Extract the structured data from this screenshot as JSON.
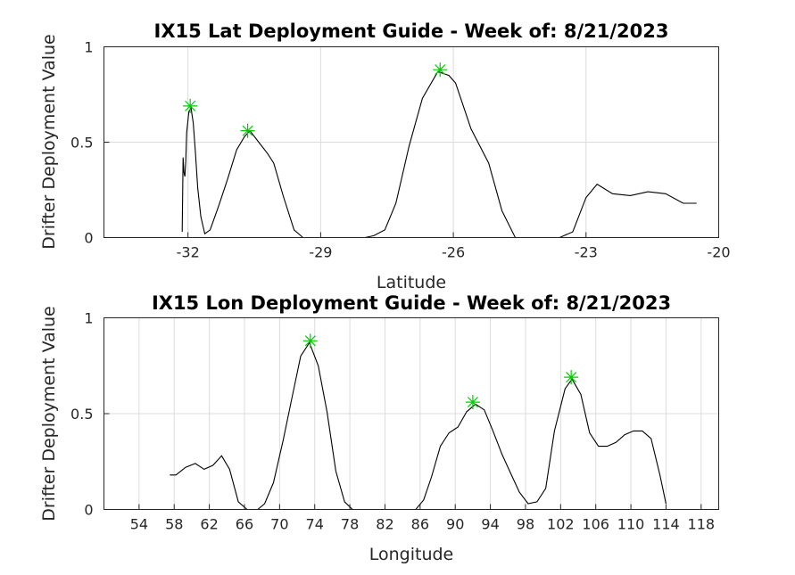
{
  "chart_data": [
    {
      "type": "line",
      "title": "IX15 Lat Deployment Guide - Week of: 8/21/2023",
      "xlabel": "Latitude",
      "ylabel": "Drifter Deployment Value",
      "xlim": [
        -33.9,
        -20
      ],
      "ylim": [
        0,
        1
      ],
      "xticks": [
        -32,
        -29,
        -26,
        -23,
        -20
      ],
      "xtick_labels": [
        "-32",
        "-29",
        "-26",
        "-23",
        "-20"
      ],
      "yticks": [
        0,
        0.5,
        1
      ],
      "ytick_labels": [
        "0",
        "0.5",
        "1"
      ],
      "grid": true,
      "series": [
        {
          "color": "#000000",
          "x": [
            -32.13,
            -32.11,
            -32.09,
            -32.07,
            -32.05,
            -32.03,
            -31.98,
            -31.93,
            -31.88,
            -31.83,
            -31.78,
            -31.71,
            -31.62,
            -31.5,
            -31.3,
            -31.1,
            -30.9,
            -30.72,
            -30.6,
            -30.4,
            -30.2,
            -30.06,
            -29.85,
            -29.6,
            -29.4,
            -29.2,
            -29.0,
            -28.8,
            -28.6,
            -28.3,
            -28.0,
            -27.8,
            -27.55,
            -27.3,
            -27.0,
            -26.7,
            -26.35,
            -26.1,
            -25.95,
            -25.6,
            -25.2,
            -24.9,
            -24.6,
            -24.3,
            -24.0,
            -23.6,
            -23.3,
            -23.0,
            -22.75,
            -22.4,
            -22.0,
            -21.6,
            -21.2,
            -20.8,
            -20.5
          ],
          "y": [
            0.03,
            0.42,
            0.34,
            0.32,
            0.4,
            0.55,
            0.66,
            0.68,
            0.6,
            0.44,
            0.26,
            0.11,
            0.02,
            0.04,
            0.17,
            0.31,
            0.46,
            0.53,
            0.56,
            0.5,
            0.44,
            0.39,
            0.22,
            0.04,
            0.0,
            0.0,
            0.0,
            0.0,
            0.0,
            0.0,
            0.0,
            0.01,
            0.04,
            0.18,
            0.48,
            0.73,
            0.87,
            0.85,
            0.81,
            0.57,
            0.39,
            0.14,
            0.0,
            0.0,
            0.0,
            0.0,
            0.03,
            0.21,
            0.28,
            0.23,
            0.22,
            0.24,
            0.23,
            0.18,
            0.18
          ]
        }
      ],
      "peaks": [
        {
          "x": -31.95,
          "y": 0.69
        },
        {
          "x": -30.65,
          "y": 0.56
        },
        {
          "x": -26.3,
          "y": 0.88
        }
      ],
      "peak_color": "#00cc00"
    },
    {
      "type": "line",
      "title": "IX15 Lon Deployment Guide - Week of: 8/21/2023",
      "xlabel": "Longitude",
      "ylabel": "Drifter Deployment Value",
      "xlim": [
        50,
        120
      ],
      "ylim": [
        0,
        1
      ],
      "xticks": [
        54,
        58,
        62,
        66,
        70,
        74,
        78,
        82,
        86,
        90,
        94,
        98,
        102,
        106,
        110,
        114,
        118
      ],
      "xtick_labels": [
        "54",
        "58",
        "62",
        "66",
        "70",
        "74",
        "78",
        "82",
        "86",
        "90",
        "94",
        "98",
        "102",
        "106",
        "110",
        "114",
        "118"
      ],
      "yticks": [
        0,
        0.5,
        1
      ],
      "ytick_labels": [
        "0",
        "0.5",
        "1"
      ],
      "grid": true,
      "series": [
        {
          "color": "#000000",
          "x": [
            57.5,
            58.2,
            59.3,
            60.4,
            61.4,
            62.4,
            63.4,
            64.3,
            65.3,
            66.3,
            67.5,
            68.3,
            69.3,
            70.4,
            71.4,
            72.4,
            73.4,
            74.4,
            75.4,
            76.4,
            77.4,
            78.3,
            79.3,
            80.5,
            82.0,
            84.0,
            85.5,
            86.4,
            87.3,
            88.3,
            89.3,
            90.3,
            91.3,
            92.3,
            93.3,
            94.3,
            95.3,
            96.3,
            97.3,
            98.3,
            99.3,
            100.3,
            101.3,
            102.5,
            103.3,
            104.3,
            105.3,
            106.3,
            107.3,
            108.3,
            109.3,
            110.3,
            111.3,
            112.3,
            113.3,
            114.0
          ],
          "y": [
            0.18,
            0.18,
            0.22,
            0.24,
            0.21,
            0.23,
            0.28,
            0.21,
            0.04,
            0.0,
            0.0,
            0.03,
            0.14,
            0.36,
            0.58,
            0.8,
            0.87,
            0.75,
            0.51,
            0.2,
            0.04,
            0.0,
            0.0,
            0.0,
            0.0,
            0.0,
            0.0,
            0.05,
            0.17,
            0.33,
            0.4,
            0.43,
            0.51,
            0.55,
            0.52,
            0.41,
            0.29,
            0.19,
            0.09,
            0.03,
            0.04,
            0.11,
            0.41,
            0.63,
            0.68,
            0.6,
            0.4,
            0.33,
            0.33,
            0.35,
            0.39,
            0.41,
            0.41,
            0.37,
            0.18,
            0.03
          ]
        }
      ],
      "peaks": [
        {
          "x": 73.5,
          "y": 0.88
        },
        {
          "x": 92.0,
          "y": 0.56
        },
        {
          "x": 103.2,
          "y": 0.69
        }
      ],
      "peak_color": "#00cc00"
    }
  ]
}
